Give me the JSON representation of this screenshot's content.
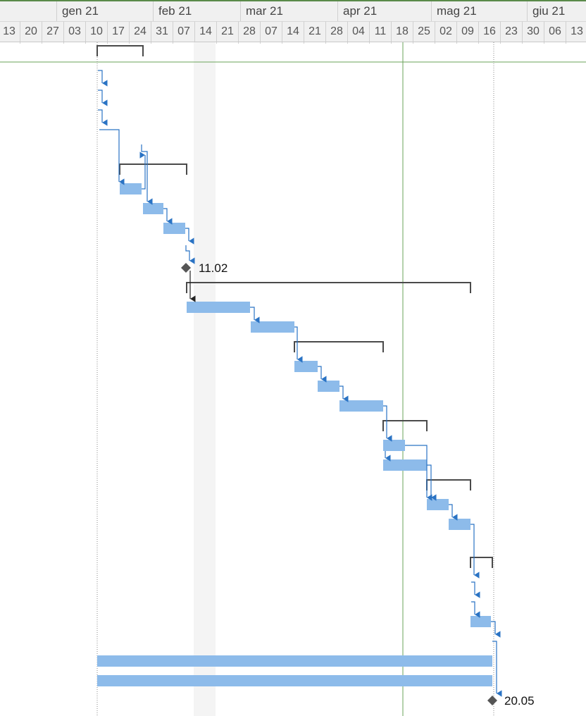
{
  "timescale": {
    "months": [
      "gen 21",
      "feb 21",
      "mar 21",
      "apr 21",
      "mag 21",
      "giu 21"
    ],
    "days": [
      "13",
      "20",
      "27",
      "03",
      "10",
      "17",
      "24",
      "31",
      "07",
      "14",
      "21",
      "28",
      "07",
      "14",
      "21",
      "28",
      "04",
      "11",
      "18",
      "25",
      "02",
      "09",
      "16",
      "23",
      "30",
      "06",
      "13"
    ]
  },
  "milestones": [
    {
      "label": "11.02"
    },
    {
      "label": "20.05"
    }
  ],
  "colors": {
    "task_bar": "#8dbbea",
    "summary_bracket": "#4a4a4a",
    "link_arrow": "#2a73c4",
    "milestone": "#555555",
    "status_line": "#6aa35a",
    "nonworking_shade": "#f4f4f4"
  }
}
